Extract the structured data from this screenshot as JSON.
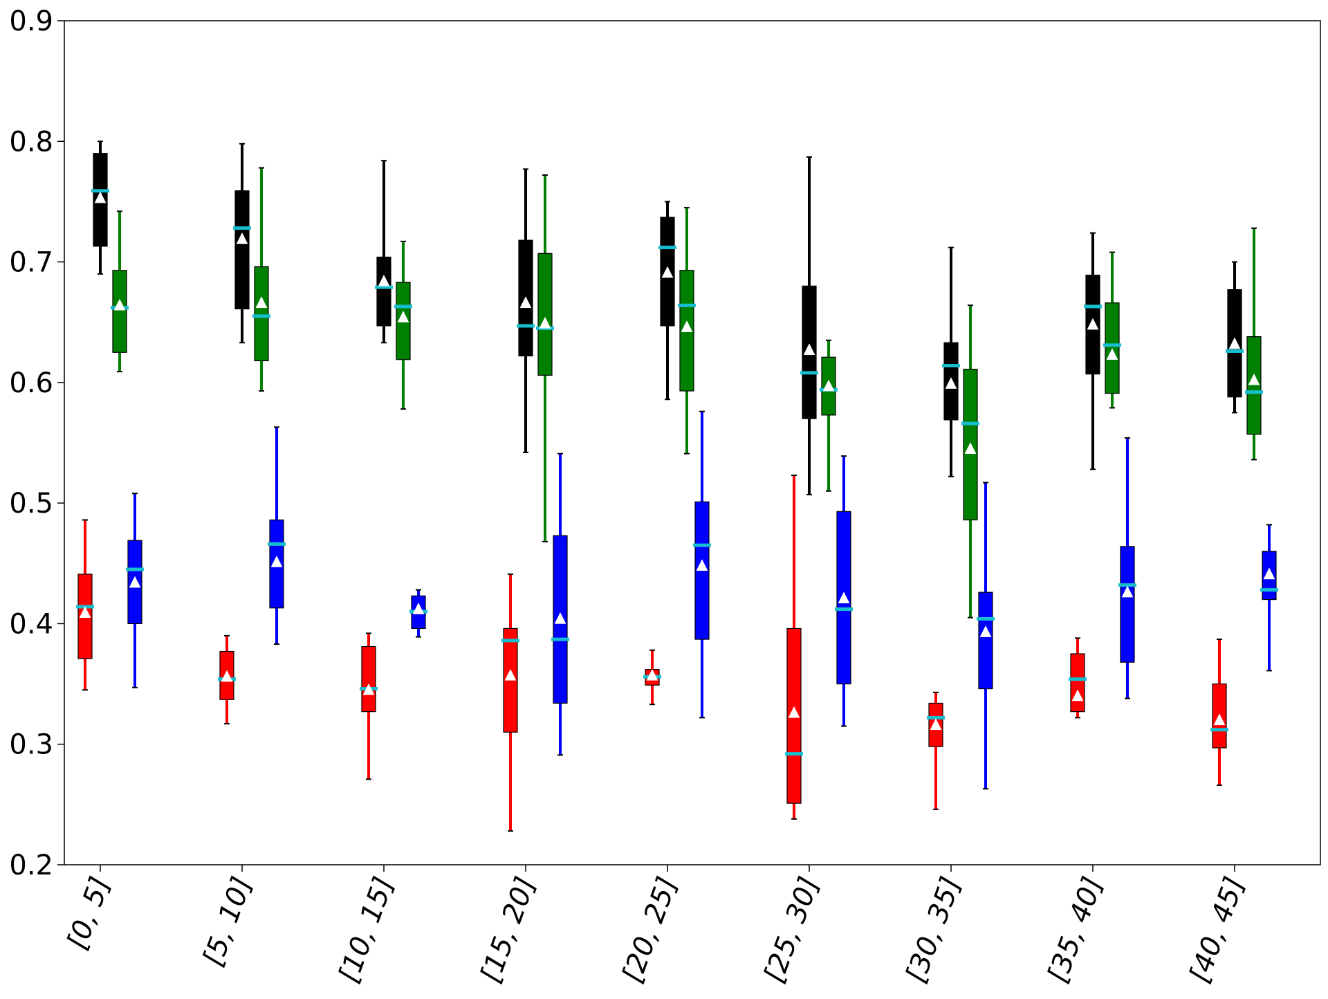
{
  "chart_data": {
    "type": "box",
    "title": "",
    "xlabel": "",
    "ylabel": "",
    "ylim": [
      0.2,
      0.9
    ],
    "yticks": [
      0.2,
      0.3,
      0.4,
      0.5,
      0.6,
      0.7,
      0.8,
      0.9
    ],
    "ytick_labels": [
      "0.2",
      "0.3",
      "0.4",
      "0.5",
      "0.6",
      "0.7",
      "0.8",
      "0.9"
    ],
    "categories": [
      "[0, 5]",
      "[5, 10]",
      "[10, 15]",
      "[15, 20]",
      "[20, 25]",
      "[25, 30]",
      "[30, 35]",
      "[35, 40]",
      "[40, 45]"
    ],
    "grid": false,
    "legend": "none",
    "median_color": "#17becf",
    "mean_marker_color": "#ffffff",
    "series": [
      {
        "color": "#ff0000",
        "boxes": [
          {
            "whislo": 0.345,
            "q1": 0.371,
            "med": 0.414,
            "q3": 0.441,
            "whishi": 0.486,
            "mean": 0.409
          },
          {
            "whislo": 0.317,
            "q1": 0.337,
            "med": 0.354,
            "q3": 0.377,
            "whishi": 0.39,
            "mean": 0.356
          },
          {
            "whislo": 0.271,
            "q1": 0.327,
            "med": 0.346,
            "q3": 0.381,
            "whishi": 0.392,
            "mean": 0.345
          },
          {
            "whislo": 0.228,
            "q1": 0.31,
            "med": 0.386,
            "q3": 0.396,
            "whishi": 0.441,
            "mean": 0.357
          },
          {
            "whislo": 0.333,
            "q1": 0.349,
            "med": 0.356,
            "q3": 0.362,
            "whishi": 0.378,
            "mean": 0.357
          },
          {
            "whislo": 0.238,
            "q1": 0.251,
            "med": 0.292,
            "q3": 0.396,
            "whishi": 0.523,
            "mean": 0.326
          },
          {
            "whislo": 0.246,
            "q1": 0.298,
            "med": 0.322,
            "q3": 0.334,
            "whishi": 0.343,
            "mean": 0.316
          },
          {
            "whislo": 0.322,
            "q1": 0.327,
            "med": 0.354,
            "q3": 0.375,
            "whishi": 0.388,
            "mean": 0.34
          },
          {
            "whislo": 0.266,
            "q1": 0.297,
            "med": 0.312,
            "q3": 0.35,
            "whishi": 0.387,
            "mean": 0.32
          }
        ]
      },
      {
        "color": "#000000",
        "boxes": [
          {
            "whislo": 0.69,
            "q1": 0.713,
            "med": 0.759,
            "q3": 0.79,
            "whishi": 0.8,
            "mean": 0.753
          },
          {
            "whislo": 0.633,
            "q1": 0.661,
            "med": 0.728,
            "q3": 0.759,
            "whishi": 0.798,
            "mean": 0.719
          },
          {
            "whislo": 0.633,
            "q1": 0.647,
            "med": 0.679,
            "q3": 0.704,
            "whishi": 0.784,
            "mean": 0.684
          },
          {
            "whislo": 0.542,
            "q1": 0.622,
            "med": 0.647,
            "q3": 0.718,
            "whishi": 0.777,
            "mean": 0.666
          },
          {
            "whislo": 0.586,
            "q1": 0.647,
            "med": 0.712,
            "q3": 0.737,
            "whishi": 0.75,
            "mean": 0.691
          },
          {
            "whislo": 0.507,
            "q1": 0.57,
            "med": 0.608,
            "q3": 0.68,
            "whishi": 0.787,
            "mean": 0.627
          },
          {
            "whislo": 0.522,
            "q1": 0.569,
            "med": 0.614,
            "q3": 0.633,
            "whishi": 0.712,
            "mean": 0.599
          },
          {
            "whislo": 0.528,
            "q1": 0.607,
            "med": 0.663,
            "q3": 0.689,
            "whishi": 0.724,
            "mean": 0.648
          },
          {
            "whislo": 0.575,
            "q1": 0.588,
            "med": 0.626,
            "q3": 0.677,
            "whishi": 0.7,
            "mean": 0.632
          }
        ]
      },
      {
        "color": "#008000",
        "boxes": [
          {
            "whislo": 0.609,
            "q1": 0.625,
            "med": 0.662,
            "q3": 0.693,
            "whishi": 0.742,
            "mean": 0.664
          },
          {
            "whislo": 0.593,
            "q1": 0.618,
            "med": 0.655,
            "q3": 0.696,
            "whishi": 0.778,
            "mean": 0.666
          },
          {
            "whislo": 0.578,
            "q1": 0.619,
            "med": 0.663,
            "q3": 0.683,
            "whishi": 0.717,
            "mean": 0.654
          },
          {
            "whislo": 0.468,
            "q1": 0.606,
            "med": 0.645,
            "q3": 0.707,
            "whishi": 0.772,
            "mean": 0.649
          },
          {
            "whislo": 0.541,
            "q1": 0.593,
            "med": 0.664,
            "q3": 0.693,
            "whishi": 0.745,
            "mean": 0.646
          },
          {
            "whislo": 0.51,
            "q1": 0.573,
            "med": 0.594,
            "q3": 0.621,
            "whishi": 0.635,
            "mean": 0.597
          },
          {
            "whislo": 0.405,
            "q1": 0.486,
            "med": 0.566,
            "q3": 0.611,
            "whishi": 0.664,
            "mean": 0.545
          },
          {
            "whislo": 0.579,
            "q1": 0.591,
            "med": 0.631,
            "q3": 0.666,
            "whishi": 0.708,
            "mean": 0.623
          },
          {
            "whislo": 0.536,
            "q1": 0.557,
            "med": 0.592,
            "q3": 0.638,
            "whishi": 0.728,
            "mean": 0.602
          }
        ]
      },
      {
        "color": "#0000ff",
        "boxes": [
          {
            "whislo": 0.347,
            "q1": 0.4,
            "med": 0.445,
            "q3": 0.469,
            "whishi": 0.508,
            "mean": 0.434
          },
          {
            "whislo": 0.383,
            "q1": 0.413,
            "med": 0.466,
            "q3": 0.486,
            "whishi": 0.563,
            "mean": 0.451
          },
          {
            "whislo": 0.389,
            "q1": 0.396,
            "med": 0.41,
            "q3": 0.423,
            "whishi": 0.428,
            "mean": 0.412
          },
          {
            "whislo": 0.291,
            "q1": 0.334,
            "med": 0.387,
            "q3": 0.473,
            "whishi": 0.541,
            "mean": 0.404
          },
          {
            "whislo": 0.322,
            "q1": 0.387,
            "med": 0.465,
            "q3": 0.501,
            "whishi": 0.576,
            "mean": 0.448
          },
          {
            "whislo": 0.315,
            "q1": 0.35,
            "med": 0.412,
            "q3": 0.493,
            "whishi": 0.539,
            "mean": 0.421
          },
          {
            "whislo": 0.263,
            "q1": 0.346,
            "med": 0.404,
            "q3": 0.426,
            "whishi": 0.517,
            "mean": 0.393
          },
          {
            "whislo": 0.338,
            "q1": 0.368,
            "med": 0.432,
            "q3": 0.464,
            "whishi": 0.554,
            "mean": 0.426
          },
          {
            "whislo": 0.361,
            "q1": 0.42,
            "med": 0.428,
            "q3": 0.46,
            "whishi": 0.482,
            "mean": 0.441
          }
        ]
      }
    ]
  }
}
